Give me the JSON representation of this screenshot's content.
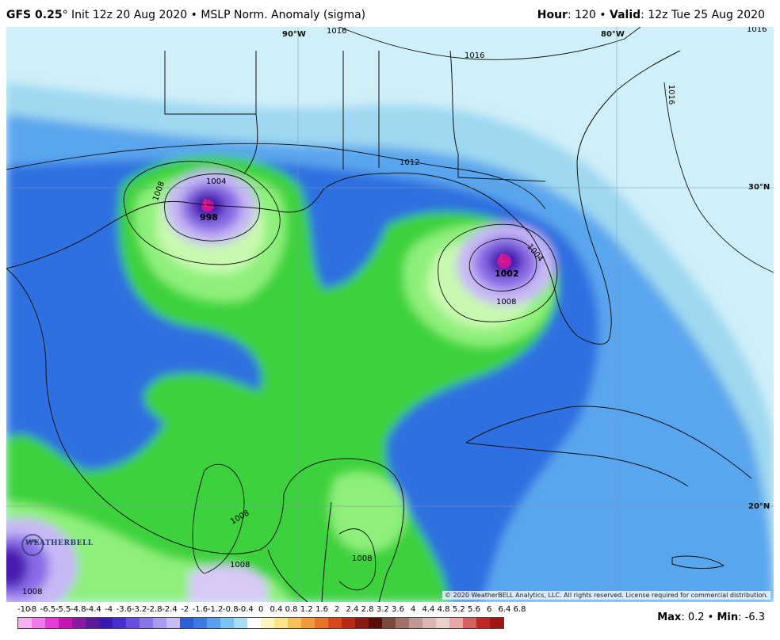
{
  "header": {
    "model": "GFS 0.25",
    "degree_mark": "°",
    "init": " Init 12z 20 Aug 2020",
    "sep1": " • ",
    "product": "MSLP Norm. Anomaly (sigma)",
    "hour_label": "Hour",
    "hour_value": ": 120",
    "sep2": " • ",
    "valid_label": "Valid",
    "valid_value": ": 12z Tue 25 Aug 2020"
  },
  "map": {
    "lon_labels": [
      "90°W",
      "80°W"
    ],
    "lat_labels": [
      "30°N",
      "20°N"
    ],
    "isobar_labels": [
      "1016",
      "1016",
      "1016",
      "1016",
      "1012",
      "1008",
      "1004",
      "1004",
      "1008",
      "1008",
      "1008",
      "1008",
      "1008"
    ],
    "lows": [
      {
        "symbol": "L",
        "pressure": "998"
      },
      {
        "symbol": "L",
        "pressure": "1002"
      }
    ],
    "copyright": "© 2020 WeatherBELL Analytics, LLC. All rights reserved. License required for commercial distribution.",
    "logo_text": "WEATHERBELL"
  },
  "colors": {
    "ocean_pale": "#cfeff9",
    "ocean_light": "#9fd8f0",
    "blue_mid": "#5aa6ee",
    "blue_deep": "#2f6fe0",
    "green_bright": "#3ed23c",
    "green_light": "#8ef07a",
    "green_pale": "#c9f9b0",
    "white_core": "#f4fbf0",
    "purple_light": "#c7b8f5",
    "purple_mid": "#8a6be6",
    "purple_deep": "#4a1fb0",
    "magenta": "#c4169a"
  },
  "legend": {
    "ticks": [
      "-10",
      "-8",
      "-6.5",
      "-5.5",
      "-4.8",
      "-4.4",
      "-4",
      "-3.6",
      "-3.2",
      "-2.8",
      "-2.4",
      "-2",
      "-1.6",
      "-1.2",
      "-0.8",
      "-0.4",
      "0",
      "0.4",
      "0.8",
      "1.2",
      "1.6",
      "2",
      "2.4",
      "2.8",
      "3.2",
      "3.6",
      "4",
      "4.4",
      "4.8",
      "5.2",
      "5.6",
      "6",
      "6.4",
      "6.8"
    ],
    "colors": [
      "#f7b0f0",
      "#f27ae8",
      "#e83ad8",
      "#c616b4",
      "#8c1aa0",
      "#5a1a9a",
      "#3a1ab0",
      "#4a2ed0",
      "#6a4ee0",
      "#8a74ea",
      "#aa9af0",
      "#c9bcf6",
      "#2c5fd8",
      "#3d7ae6",
      "#5aa0f0",
      "#7ec2f4",
      "#a7dcf6",
      "#ffffff",
      "#fbf4c0",
      "#fbe48a",
      "#f8c05a",
      "#f29a3a",
      "#e8742a",
      "#d8481e",
      "#b82a18",
      "#8c1a12",
      "#5a0e0a",
      "#7a4a3e",
      "#a0726a",
      "#c09a92",
      "#dab8b2",
      "#ecd0cc",
      "#e8a6a6",
      "#d46060",
      "#c02828",
      "#a01414"
    ]
  },
  "stats": {
    "max_label": "Max",
    "max_value": ": 0.2",
    "sep": " • ",
    "min_label": "Min",
    "min_value": ": -6.3"
  }
}
